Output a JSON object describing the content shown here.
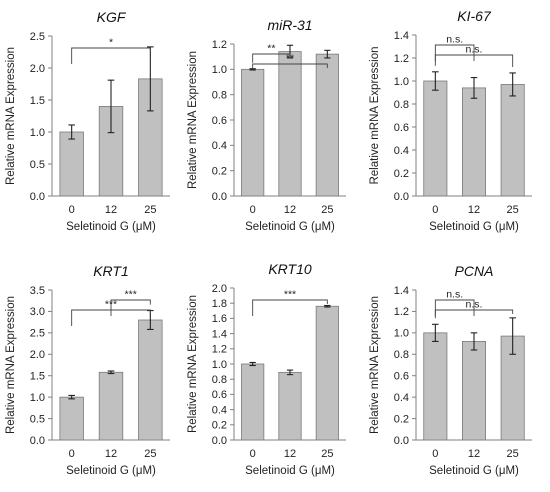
{
  "chart_data": [
    {
      "type": "bar",
      "title": "KGF",
      "xlabel": "Seletinoid G (μM)",
      "ylabel": "Relative mRNA Expression",
      "categories": [
        "0",
        "12",
        "25"
      ],
      "values": [
        1.0,
        1.4,
        1.83
      ],
      "errors": [
        0.11,
        0.41,
        0.5
      ],
      "ylim": [
        0,
        2.5
      ],
      "yticks": [
        "0.0",
        "0.5",
        "1.0",
        "1.5",
        "2.0",
        "2.5"
      ],
      "significance": [
        {
          "from": "0",
          "to": "25",
          "label": "*"
        }
      ]
    },
    {
      "type": "bar",
      "title": "miR-31",
      "xlabel": "Seletinoid G (μM)",
      "ylabel": "Relative mRNA Expression",
      "categories": [
        "0",
        "12",
        "25"
      ],
      "values": [
        1.0,
        1.14,
        1.12
      ],
      "errors": [
        0.005,
        0.05,
        0.03
      ],
      "ylim": [
        0,
        1.2
      ],
      "yticks": [
        "0.0",
        "0.2",
        "0.4",
        "0.6",
        "0.8",
        "1.0",
        "1.2"
      ],
      "significance": [
        {
          "from": "0",
          "to": "12",
          "label": "**"
        },
        {
          "from": "0",
          "to": "25",
          "label": "**"
        }
      ]
    },
    {
      "type": "bar",
      "title": "KI-67",
      "xlabel": "Seletinoid G (μM)",
      "ylabel": "Relative mRNA Expression",
      "categories": [
        "0",
        "12",
        "25"
      ],
      "values": [
        1.0,
        0.94,
        0.97
      ],
      "errors": [
        0.08,
        0.09,
        0.1
      ],
      "ylim": [
        0,
        1.4
      ],
      "yticks": [
        "0.0",
        "0.2",
        "0.4",
        "0.6",
        "0.8",
        "1.0",
        "1.2",
        "1.4"
      ],
      "significance": [
        {
          "from": "0",
          "to": "12",
          "label": "n.s."
        },
        {
          "from": "0",
          "to": "25",
          "label": "n.s."
        }
      ]
    },
    {
      "type": "bar",
      "title": "KRT1",
      "xlabel": "Seletinoid G (μM)",
      "ylabel": "Relative mRNA Expression",
      "categories": [
        "0",
        "12",
        "25"
      ],
      "values": [
        1.0,
        1.58,
        2.8
      ],
      "errors": [
        0.04,
        0.03,
        0.22
      ],
      "ylim": [
        0,
        3.5
      ],
      "yticks": [
        "0.0",
        "0.5",
        "1.0",
        "1.5",
        "2.0",
        "2.5",
        "3.0",
        "3.5"
      ],
      "significance": [
        {
          "from": "12",
          "to": "25",
          "label": "***"
        },
        {
          "from": "0",
          "to": "25",
          "label": "***"
        }
      ]
    },
    {
      "type": "bar",
      "title": "KRT10",
      "xlabel": "Seletinoid G (μM)",
      "ylabel": "Relative mRNA Expression",
      "categories": [
        "0",
        "12",
        "25"
      ],
      "values": [
        1.0,
        0.89,
        1.76
      ],
      "errors": [
        0.02,
        0.03,
        0.01
      ],
      "ylim": [
        0,
        2.0
      ],
      "yticks": [
        "0.0",
        "0.2",
        "0.4",
        "0.6",
        "0.8",
        "1.0",
        "1.2",
        "1.4",
        "1.6",
        "1.8",
        "2.0"
      ],
      "significance": [
        {
          "from": "0",
          "to": "25",
          "label": "***"
        }
      ]
    },
    {
      "type": "bar",
      "title": "PCNA",
      "xlabel": "Seletinoid G (μM)",
      "ylabel": "Relative mRNA Expression",
      "categories": [
        "0",
        "12",
        "25"
      ],
      "values": [
        1.0,
        0.92,
        0.97
      ],
      "errors": [
        0.08,
        0.08,
        0.17
      ],
      "ylim": [
        0,
        1.4
      ],
      "yticks": [
        "0.0",
        "0.2",
        "0.4",
        "0.6",
        "0.8",
        "1.0",
        "1.2",
        "1.4"
      ],
      "significance": [
        {
          "from": "0",
          "to": "12",
          "label": "n.s."
        },
        {
          "from": "0",
          "to": "25",
          "label": "n.s."
        }
      ]
    }
  ]
}
